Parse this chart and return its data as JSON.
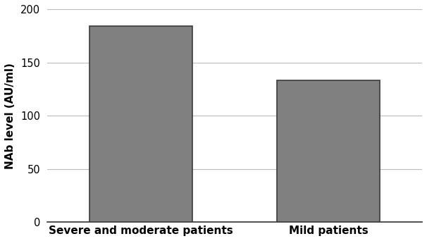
{
  "categories": [
    "Severe and moderate patients",
    "Mild patients"
  ],
  "values": [
    184,
    133
  ],
  "bar_color": "#808080",
  "bar_edgecolor": "#3a3a3a",
  "bar_linewidth": 1.2,
  "ylabel": "NAb level (AU/ml)",
  "ylim": [
    0,
    200
  ],
  "yticks": [
    0,
    50,
    100,
    150,
    200
  ],
  "background_color": "#ffffff",
  "grid_color": "#bbbbbb",
  "ylabel_fontsize": 11,
  "tick_fontsize": 10.5,
  "xtick_fontsize": 11,
  "bar_width": 0.55
}
